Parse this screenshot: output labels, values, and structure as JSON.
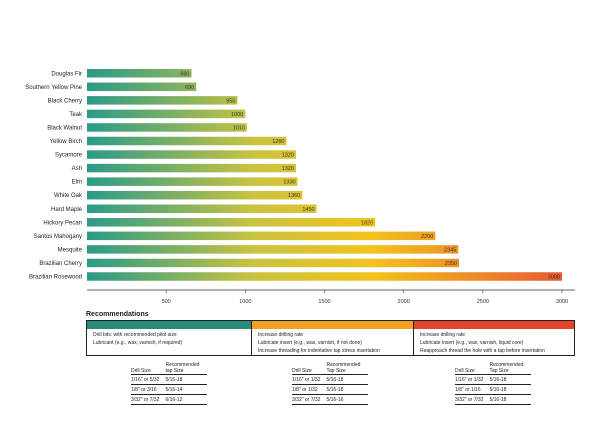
{
  "chart_data": {
    "type": "bar",
    "orientation": "horizontal",
    "title": "",
    "xlabel": "",
    "ylabel": "",
    "categories": [
      "Douglas Fir",
      "Southern Yellow Pine",
      "Black Cherry",
      "Teak",
      "Black Walnut",
      "Yellow Birch",
      "Sycamore",
      "Ash",
      "Elm",
      "White Oak",
      "Hard Maple",
      "Hickory Pecan",
      "Santos Mahogany",
      "Mesquite",
      "Brazilian Cherry",
      "Brazilian Rosewood"
    ],
    "values": [
      660,
      690,
      950,
      1000,
      1010,
      1260,
      1320,
      1320,
      1330,
      1360,
      1450,
      1820,
      2200,
      2345,
      2350,
      3000
    ],
    "value_labels": [
      "660",
      "690",
      "950",
      "1000",
      "1010",
      "1260",
      "1320",
      "1320",
      "1330",
      "1360",
      "1450",
      "1820",
      "2200",
      "2345",
      "2350",
      "3000"
    ],
    "xlim": [
      0,
      3000
    ],
    "xticks": [
      500,
      1000,
      1500,
      2000,
      2500,
      3000
    ],
    "xtick_labels": [
      "500",
      "1000",
      "1500",
      "2000",
      "2500",
      "3000"
    ],
    "grid": false,
    "gradient_colors": [
      "#2a9a8a",
      "#c9c341",
      "#f2c31c",
      "#e85a33"
    ]
  },
  "recommendations": {
    "title": "Recommendations",
    "panels": [
      {
        "color": "#2a8a7e",
        "lines": [
          "Drill bits: with recommended pilot size",
          "Lubricant (e.g., wax, varnish, if required)"
        ],
        "table": {
          "headers": [
            "Drill Size",
            "Recommended tap Size"
          ],
          "rows": [
            [
              "1/16\" or 5/32",
              "5/16-18"
            ],
            [
              "1/8\" or 3/16",
              "5/16-14"
            ],
            [
              "3/32\" or 7/32",
              "6/16-12"
            ]
          ]
        }
      },
      {
        "color": "#f0a21e",
        "lines": [
          "Increase drilling rate",
          "Lubricate insert (e.g., wax, varnish, if not done)",
          "Increase threading for indentative tap stress insertation"
        ],
        "table": {
          "headers": [
            "Drill Size",
            "Recommended Tap Size"
          ],
          "rows": [
            [
              "1/16\" or 1/32",
              "5/16-18"
            ],
            [
              "1/8\" or 1/32",
              "5/16-18"
            ],
            [
              "3/32\" or 7/32",
              "5/16-16"
            ]
          ]
        }
      },
      {
        "color": "#e2432c",
        "lines": [
          "Increase drilling rate",
          "Lubricate insert (e.g., wax, varnish, liquid core)",
          "Reapproach thread the hole with a tap before insertation"
        ],
        "table": {
          "headers": [
            "Drill Size",
            "Recommended Tap Size"
          ],
          "rows": [
            [
              "1/16\" or 1/32",
              "5/16-18"
            ],
            [
              "1/8\" or 1/16",
              "5/16-18"
            ],
            [
              "3/32\" or 7/32",
              "5/16-18"
            ]
          ]
        }
      }
    ]
  }
}
